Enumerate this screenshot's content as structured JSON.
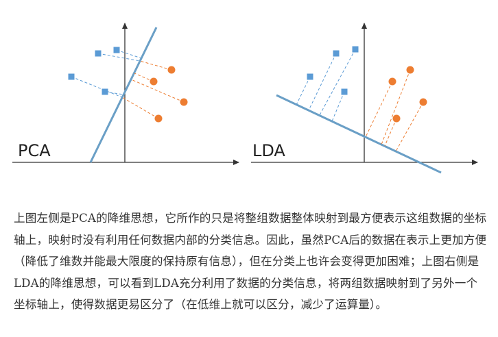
{
  "colors": {
    "axis": "#333333",
    "projection_line": "#6a9fc6",
    "class_a": "#5b9bd5",
    "class_b": "#ed7d31"
  },
  "panels": [
    {
      "label": "PCA",
      "projection_line_icon": "pca-projection-line",
      "class_a_points": 4,
      "class_b_points": 4
    },
    {
      "label": "LDA",
      "projection_line_icon": "lda-projection-line",
      "class_a_points": 4,
      "class_b_points": 4
    }
  ],
  "caption": "上图左侧是PCA的降维思想，它所作的只是将整组数据整体映射到最方便表示这组数据的坐标轴上，映射时没有利用任何数据内部的分类信息。因此，虽然PCA后的数据在表示上更加方便（降低了维数并能最大限度的保持原有信息），但在分类上也许会变得更加困难；上图右侧是LDA的降维思想，可以看到LDA充分利用了数据的分类信息，将两组数据映射到了另外一个坐标轴上，使得数据更易区分了（在低维上就可以区分，减少了运算量）。"
}
